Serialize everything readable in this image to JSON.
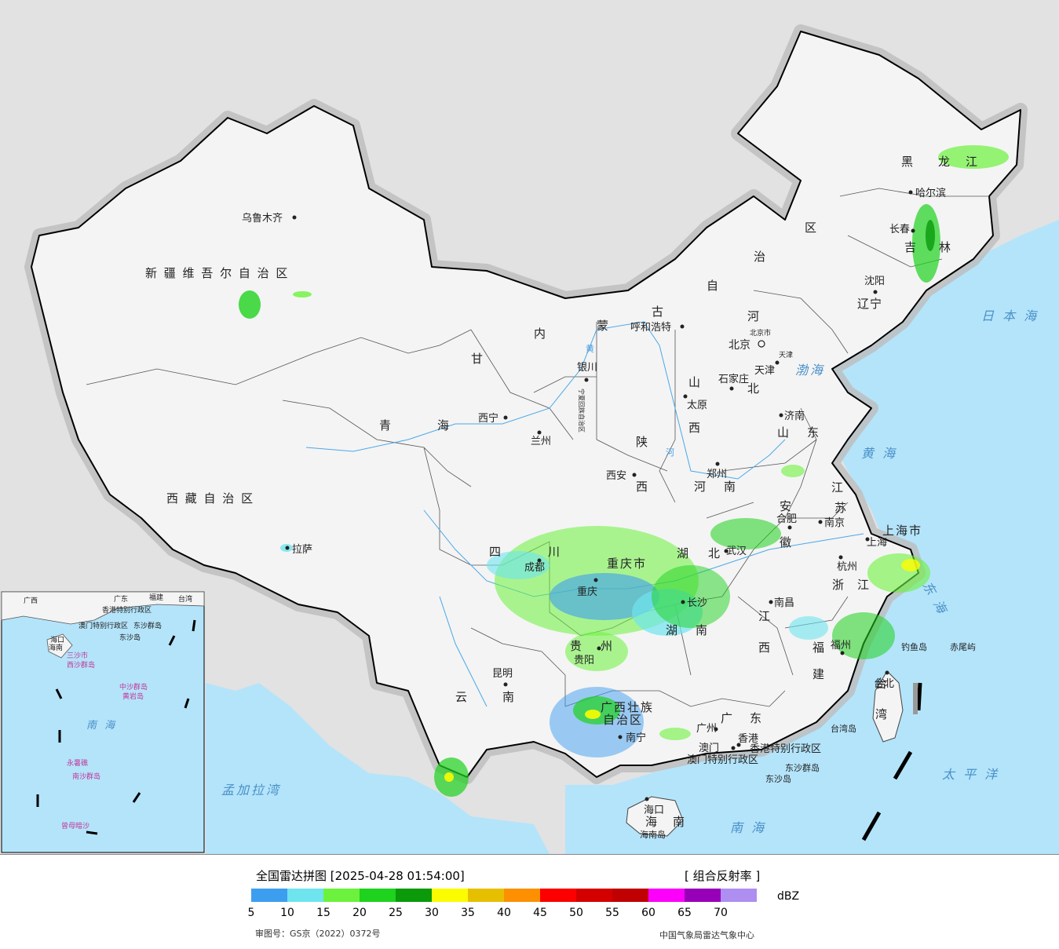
{
  "map": {
    "region_labels": {
      "xinjiang": "新 疆 维 吾 尔 自 治 区",
      "xizang": "西 藏 自 治 区",
      "qinghai_1": "青",
      "qinghai_2": "海",
      "gansu": "甘",
      "sichuan_1": "四",
      "sichuan_2": "川",
      "yunnan_1": "云",
      "yunnan_2": "南",
      "guizhou_1": "贵",
      "guizhou_2": "州",
      "guangxi_1": "广西壮族",
      "guangxi_2": "自治区",
      "guangdong_1": "广",
      "guangdong_2": "东",
      "hainan_1": "海",
      "hainan_2": "南",
      "hunan_1": "湖",
      "hunan_2": "南",
      "hubei_1": "湖",
      "hubei_2": "北",
      "jiangxi_1": "江",
      "jiangxi_2": "西",
      "fujian_1": "福",
      "fujian_2": "建",
      "zhejiang_1": "浙",
      "zhejiang_2": "江",
      "anhui_1": "安",
      "anhui_2": "徽",
      "jiangsu_1": "江",
      "jiangsu_2": "苏",
      "shandong_1": "山",
      "shandong_2": "东",
      "henan_1": "河",
      "henan_2": "南",
      "shaanxi_1": "陕",
      "shaanxi_2": "西",
      "shanxi_1": "山",
      "shanxi_2": "西",
      "hebei_1": "河",
      "hebei_2": "北",
      "neimenggu_1": "内",
      "neimenggu_2": "蒙",
      "neimenggu_3": "古",
      "neimenggu_4": "自",
      "neimenggu_5": "治",
      "neimenggu_6": "区",
      "liaoning_1": "辽",
      "liaoning_2": "宁",
      "jilin_1": "吉",
      "jilin_2": "林",
      "heilongjiang_1": "黑",
      "heilongjiang_2": "龙",
      "heilongjiang_3": "江",
      "ningxia": "宁夏回族自治区",
      "chongqing": "重庆市",
      "shanghai": "上海市",
      "taiwan_1": "台",
      "taiwan_2": "湾",
      "xianggang": "香港特别行政区",
      "aomen": "澳门特别行政区",
      "beijing_shi": "北京市",
      "tianjin_shi": "天津"
    },
    "cities": {
      "urumqi": "乌鲁木齐",
      "lhasa": "拉萨",
      "xining": "西宁",
      "lanzhou": "兰州",
      "yinchuan": "银川",
      "hohhot": "呼和浩特",
      "beijing": "北京",
      "tianjin": "天津",
      "shijiazhuang": "石家庄",
      "taiyuan": "太原",
      "jinan": "济南",
      "zhengzhou": "郑州",
      "xian": "西安",
      "chengdu": "成都",
      "chongqing": "重庆",
      "kunming": "昆明",
      "guiyang": "贵阳",
      "nanning": "南宁",
      "changsha": "长沙",
      "wuhan": "武汉",
      "hefei": "合肥",
      "nanjing": "南京",
      "shanghai": "上海",
      "hangzhou": "杭州",
      "nanchang": "南昌",
      "fuzhou": "福州",
      "guangzhou": "广州",
      "macau": "澳门",
      "hongkong": "香港",
      "haikou": "海口",
      "taibei": "台北",
      "shenyang": "沈阳",
      "changchun": "长春",
      "harbin": "哈尔滨"
    },
    "seas": {
      "bohai": "渤海",
      "huanghai": "黄 海",
      "donghai": "东 海",
      "nanhai": "南 海",
      "ribenhai": "日 本 海",
      "taipingyang": "太 平 洋",
      "mengjialawan": "孟加拉湾"
    },
    "islands": {
      "diaoyudao": "钓鱼岛",
      "chiweiyu": "赤尾屿",
      "taiwandao": "台湾岛",
      "hainandao": "海南岛",
      "dongshaqundao": "东沙群岛",
      "dongshadao": "东沙岛"
    },
    "rivers": {
      "huanghe": "黄",
      "he": "河"
    },
    "inset": {
      "guangdong": "广东",
      "fujian": "福建",
      "taiwan": "台湾",
      "guangxi": "广西",
      "hainan": "海南",
      "xianggang": "香港特别行政区",
      "aomen": "澳门特别行政区",
      "dongsha": "东沙群岛",
      "xisha": "西沙群岛",
      "zhongsha": "中沙群岛",
      "huangyandao": "黄岩岛",
      "nansha": "南沙群岛",
      "nanhai": "南 海",
      "yongshujiao": "永暑礁",
      "zengmuansha": "曾母暗沙",
      "haikou": "海口",
      "sansha": "三沙市",
      "dongshadao": "东沙岛"
    }
  },
  "legend": {
    "title": "全国雷达拼图 [2025-04-28 01:54:00]",
    "product": "[ 组合反射率 ]",
    "unit": "dBZ",
    "colors": [
      "#3d9ef0",
      "#6ee4ee",
      "#6cf23c",
      "#1ed21e",
      "#0a9a0a",
      "#fcfc00",
      "#e6c000",
      "#fc9000",
      "#fc0000",
      "#d40000",
      "#c00000",
      "#fc00fc",
      "#9800b8",
      "#ae8ef0"
    ],
    "ticks": [
      "5",
      "10",
      "15",
      "20",
      "25",
      "30",
      "35",
      "40",
      "45",
      "50",
      "55",
      "60",
      "65",
      "70"
    ],
    "approval": "审图号：GS京（2022）0372号",
    "credit": "中国气象局雷达气象中心"
  }
}
